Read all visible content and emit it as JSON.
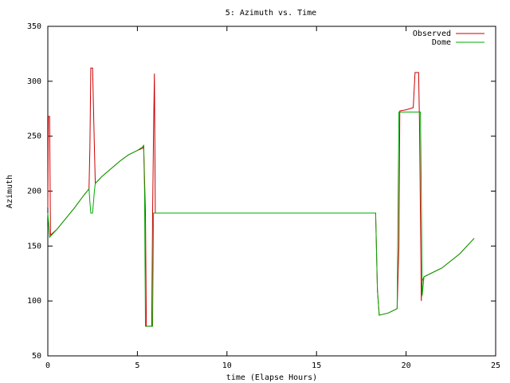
{
  "chart_data": {
    "type": "line",
    "title": "5: Azimuth vs. Time",
    "x_label": "time (Elapse Hours)",
    "y_label": "Azimuth",
    "xlim": [
      0,
      25
    ],
    "xticks": [
      0,
      5,
      10,
      15,
      20,
      25
    ],
    "ylim": [
      50,
      350
    ],
    "yticks": [
      50,
      100,
      150,
      200,
      250,
      300,
      350
    ],
    "legend": "upper right",
    "series": [
      {
        "name": "Observed",
        "color": "#cc0000",
        "x": [
          0,
          0.03,
          0.1,
          0.15,
          0.5,
          1,
          1.5,
          2,
          2.3,
          2.35,
          2.4,
          2.5,
          2.6,
          2.65,
          3,
          3.5,
          4,
          4.5,
          5,
          5.3,
          5.35,
          5.45,
          5.5,
          5.8,
          5.85,
          5.9,
          5.95,
          6.0,
          18.3,
          18.4,
          18.5,
          19,
          19.5,
          19.6,
          19.65,
          20,
          20.4,
          20.5,
          20.7,
          20.75,
          20.8,
          20.85,
          20.9,
          21,
          22,
          23,
          23.8
        ],
        "values": [
          185,
          268,
          268,
          160,
          165,
          175,
          185,
          196,
          202,
          240,
          312,
          312,
          240,
          207,
          213,
          220,
          227,
          233,
          237,
          239,
          242,
          180,
          77,
          77,
          180,
          250,
          307,
          180,
          180,
          110,
          87,
          89,
          93,
          150,
          273,
          274,
          276,
          308,
          308,
          260,
          180,
          100,
          118,
          122,
          130,
          143,
          157
        ]
      },
      {
        "name": "Dome",
        "color": "#00aa00",
        "x": [
          0,
          0.1,
          0.5,
          1,
          1.5,
          2,
          2.3,
          2.35,
          2.4,
          2.5,
          2.6,
          2.65,
          3,
          3.5,
          4,
          4.5,
          5,
          5.35,
          5.4,
          5.45,
          5.85,
          5.9,
          18.3,
          18.4,
          18.5,
          19,
          19.5,
          19.6,
          20.8,
          20.85,
          20.9,
          21,
          22,
          23,
          23.8
        ],
        "values": [
          180,
          158,
          165,
          175,
          185,
          196,
          202,
          190,
          180,
          180,
          200,
          207,
          213,
          220,
          227,
          233,
          237,
          241,
          200,
          77,
          77,
          180,
          180,
          110,
          87,
          89,
          93,
          272,
          272,
          200,
          105,
          122,
          130,
          143,
          157
        ]
      }
    ]
  }
}
